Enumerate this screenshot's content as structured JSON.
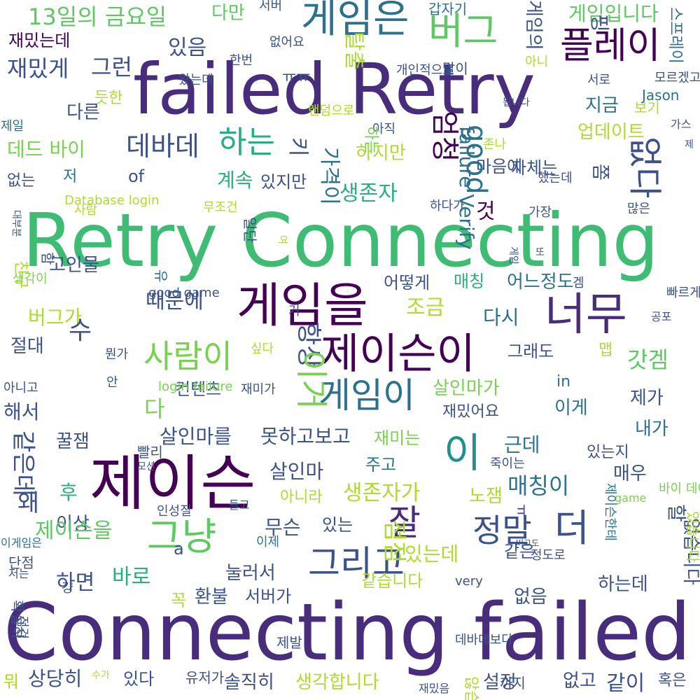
{
  "palette": {
    "dp": "#440154",
    "ip": "#472d7b",
    "bl": "#3b528b",
    "tb": "#2c728e",
    "te": "#21918c",
    "gt": "#28ae80",
    "gr": "#5ec962",
    "lg": "#addc30",
    "yl": "#fde725"
  },
  "words": [
    {
      "text": "Connecting failed",
      "color": "#472d7b"
    },
    {
      "text": "Retry Connecting",
      "color": "#3fbc73"
    },
    {
      "text": "failed Retry",
      "color": "#472d7b"
    },
    {
      "text": "제이슨",
      "color": "#440154"
    },
    {
      "text": "게임을",
      "color": "#440154"
    },
    {
      "text": "너무",
      "color": "#472d7b"
    },
    {
      "text": "제이슨이",
      "color": "#440154"
    },
    {
      "text": "게임은",
      "color": "#2c728e"
    },
    {
      "text": "플레이",
      "color": "#440154"
    },
    {
      "text": "버그",
      "color": "#5ec962"
    },
    {
      "text": "그냥",
      "color": "#5ec962"
    },
    {
      "text": "게임이",
      "color": "#2c728e"
    },
    {
      "text": "사람이",
      "color": "#7ad151"
    },
    {
      "text": "그리고",
      "color": "#3b528b"
    },
    {
      "text": "정말",
      "color": "#3b528b"
    },
    {
      "text": "잘",
      "color": "#472d7b"
    },
    {
      "text": "더",
      "color": "#3b528b"
    },
    {
      "text": "이",
      "color": "#21918c"
    },
    {
      "text": "13일의 금요일",
      "color": "#5ec962"
    },
    {
      "text": "하는",
      "color": "#28ae80"
    },
    {
      "text": "데바데",
      "color": "#3b528b"
    },
    {
      "text": "재밌게",
      "color": "#3b528b"
    },
    {
      "text": "그런",
      "color": "#3b528b"
    },
    {
      "text": "있음",
      "color": "#3b528b"
    },
    {
      "text": "다만",
      "color": "#5ec962"
    },
    {
      "text": "게임입니다",
      "color": "#5ec962"
    },
    {
      "text": "다른",
      "color": "#3b528b"
    },
    {
      "text": "데드 바이",
      "color": "#7ad151"
    },
    {
      "text": "지금",
      "color": "#2c728e"
    },
    {
      "text": "업데이트",
      "color": "#addc30"
    },
    {
      "text": "하지만",
      "color": "#addc30"
    },
    {
      "text": "마음에",
      "color": "#3b528b"
    },
    {
      "text": "계속",
      "color": "#28ae80"
    },
    {
      "text": "생존자",
      "color": "#28ae80"
    },
    {
      "text": "있지만",
      "color": "#3b528b"
    },
    {
      "text": "것",
      "color": "#440154"
    },
    {
      "text": "고인물",
      "color": "#3b528b"
    },
    {
      "text": "어떻게",
      "color": "#3b528b"
    },
    {
      "text": "매칭",
      "color": "#28ae80"
    },
    {
      "text": "어느정도",
      "color": "#2c728e"
    },
    {
      "text": "조금",
      "color": "#addc30"
    },
    {
      "text": "때문에",
      "color": "#3b528b"
    },
    {
      "text": "버그가",
      "color": "#addc30"
    },
    {
      "text": "다시",
      "color": "#2c728e"
    },
    {
      "text": "절대",
      "color": "#3b528b"
    },
    {
      "text": "수",
      "color": "#3b528b"
    },
    {
      "text": "갓겜",
      "color": "#5ec962"
    },
    {
      "text": "그래도",
      "color": "#3b528b"
    },
    {
      "text": "살인마가",
      "color": "#7ad151"
    },
    {
      "text": "재밌어요",
      "color": "#3b528b"
    },
    {
      "text": "이게",
      "color": "#2c728e"
    },
    {
      "text": "제가",
      "color": "#3b528b"
    },
    {
      "text": "내가",
      "color": "#2c728e"
    },
    {
      "text": "해서",
      "color": "#3b528b"
    },
    {
      "text": "다",
      "color": "#7ad151"
    },
    {
      "text": "컨텐츠",
      "color": "#3b528b"
    },
    {
      "text": "살인마를",
      "color": "#3b528b"
    },
    {
      "text": "못하고보고",
      "color": "#3b528b"
    },
    {
      "text": "재미는",
      "color": "#7ad151"
    },
    {
      "text": "근데",
      "color": "#2c728e"
    },
    {
      "text": "꿀잼",
      "color": "#3b528b"
    },
    {
      "text": "살인마",
      "color": "#3b528b"
    },
    {
      "text": "주고",
      "color": "#2c728e"
    },
    {
      "text": "생존자가",
      "color": "#addc30"
    },
    {
      "text": "노잼",
      "color": "#addc30"
    },
    {
      "text": "매칭이",
      "color": "#2c728e"
    },
    {
      "text": "매우",
      "color": "#3b528b"
    },
    {
      "text": "후",
      "color": "#28ae80"
    },
    {
      "text": "왜",
      "color": "#3b528b"
    },
    {
      "text": "이상",
      "color": "#3b528b"
    },
    {
      "text": "무슨",
      "color": "#3b528b"
    },
    {
      "text": "있는",
      "color": "#3b528b"
    },
    {
      "text": "제이슨을",
      "color": "#5ec962"
    },
    {
      "text": "하면",
      "color": "#3b528b"
    },
    {
      "text": "바로",
      "color": "#28ae80"
    },
    {
      "text": "눌러서",
      "color": "#3b528b"
    },
    {
      "text": "있는데",
      "color": "#addc30"
    },
    {
      "text": "같은",
      "color": "#3b528b"
    },
    {
      "text": "서버가",
      "color": "#3b528b"
    },
    {
      "text": "꼭",
      "color": "#addc30"
    },
    {
      "text": "환불",
      "color": "#3b528b"
    },
    {
      "text": "같습니다",
      "color": "#addc30"
    },
    {
      "text": "없음",
      "color": "#3b528b"
    },
    {
      "text": "하는데",
      "color": "#3b528b"
    },
    {
      "text": "상당히",
      "color": "#3b528b"
    },
    {
      "text": "있다",
      "color": "#3b528b"
    },
    {
      "text": "솔직히",
      "color": "#3b528b"
    },
    {
      "text": "생각합니다",
      "color": "#addc30"
    },
    {
      "text": "설정",
      "color": "#3b528b"
    },
    {
      "text": "없고",
      "color": "#3b528b"
    },
    {
      "text": "같이",
      "color": "#3b528b"
    },
    {
      "text": "혹은",
      "color": "#3b528b"
    },
    {
      "text": "뭐",
      "color": "#addc30"
    },
    {
      "text": "유저가",
      "color": "#3b528b"
    },
    {
      "text": "제발",
      "color": "#3b528b"
    },
    {
      "text": "Database login",
      "color": "#addc30"
    },
    {
      "text": "good game",
      "color": "#3b528b"
    },
    {
      "text": "login failure",
      "color": "#7ad151"
    },
    {
      "text": "very",
      "color": "#3b528b"
    },
    {
      "text": "of",
      "color": "#3b528b"
    },
    {
      "text": "a",
      "color": "#3b528b"
    },
    {
      "text": "in",
      "color": "#2c728e"
    },
    {
      "text": "Jason",
      "color": "#2c728e"
    },
    {
      "text": "game",
      "color": "#7ad151"
    },
    {
      "text": "재밌는데",
      "color": "#440154"
    },
    {
      "text": "듯한",
      "color": "#addc30"
    },
    {
      "text": "ㅠㅠ",
      "color": "#3b528b"
    },
    {
      "text": "한번",
      "color": "#3b528b"
    },
    {
      "text": "없어요",
      "color": "#3b528b"
    },
    {
      "text": "서버",
      "color": "#3b528b"
    },
    {
      "text": "갑자기",
      "color": "#2c728e"
    },
    {
      "text": "개인적으로",
      "color": "#3b528b"
    },
    {
      "text": "왔는데",
      "color": "#3b528b"
    },
    {
      "text": "말이",
      "color": "#3b528b"
    },
    {
      "text": "아니",
      "color": "#addc30"
    },
    {
      "text": "서로",
      "color": "#3b528b"
    },
    {
      "text": "모르겠고",
      "color": "#3b528b"
    },
    {
      "text": "보기",
      "color": "#addc30"
    },
    {
      "text": "제일",
      "color": "#2c728e"
    },
    {
      "text": "랜덤으로",
      "color": "#addc30"
    },
    {
      "text": "아직",
      "color": "#3b528b"
    },
    {
      "text": "가스",
      "color": "#3b528b"
    },
    {
      "text": "존나",
      "color": "#addc30"
    },
    {
      "text": "됩니다",
      "color": "#3b528b"
    },
    {
      "text": "제",
      "color": "#3b528b"
    },
    {
      "text": "저",
      "color": "#2c728e"
    },
    {
      "text": "없는",
      "color": "#3b528b"
    },
    {
      "text": "거",
      "color": "#3b528b"
    },
    {
      "text": "했는데",
      "color": "#3b528b"
    },
    {
      "text": "많은",
      "color": "#3b528b"
    },
    {
      "text": "하다가",
      "color": "#3b528b"
    },
    {
      "text": "가장",
      "color": "#3b528b"
    },
    {
      "text": "사람",
      "color": "#addc30"
    },
    {
      "text": "무조건",
      "color": "#addc30"
    },
    {
      "text": "자체는",
      "color": "#3b528b"
    },
    {
      "text": "또",
      "color": "#3b528b"
    },
    {
      "text": "겜",
      "color": "#3b528b"
    },
    {
      "text": "빠르게",
      "color": "#3b528b"
    },
    {
      "text": "공포",
      "color": "#3b528b"
    },
    {
      "text": "생각이",
      "color": "#7ad151"
    },
    {
      "text": "뭔가",
      "color": "#3b528b"
    },
    {
      "text": "싶다",
      "color": "#addc30"
    },
    {
      "text": "맵",
      "color": "#addc30"
    },
    {
      "text": "안",
      "color": "#3b528b"
    },
    {
      "text": "재미가",
      "color": "#3b528b"
    },
    {
      "text": "빨리",
      "color": "#3b528b"
    },
    {
      "text": "모션",
      "color": "#3b528b"
    },
    {
      "text": "있는지",
      "color": "#3b528b"
    },
    {
      "text": "죽이는",
      "color": "#3b528b"
    },
    {
      "text": "바이 데이라이트",
      "color": "#7ad151"
    },
    {
      "text": "들고",
      "color": "#3b528b"
    },
    {
      "text": "아니라",
      "color": "#addc30"
    },
    {
      "text": "인성질",
      "color": "#3b528b"
    },
    {
      "text": "아니고",
      "color": "#3b528b"
    },
    {
      "text": "이게임은",
      "color": "#2c728e"
    },
    {
      "text": "이제",
      "color": "#2c728e"
    },
    {
      "text": "단점",
      "color": "#3b528b"
    },
    {
      "text": "저는",
      "color": "#3b528b"
    },
    {
      "text": "정도로",
      "color": "#3b528b"
    },
    {
      "text": "버그도",
      "color": "#3b528b"
    },
    {
      "text": "걍",
      "color": "#3b528b"
    },
    {
      "text": "데바데보다",
      "color": "#3b528b"
    },
    {
      "text": "수가",
      "color": "#addc30"
    },
    {
      "text": "까지",
      "color": "#3b528b"
    },
    {
      "text": "재밌음",
      "color": "#3b528b"
    },
    {
      "text": "같은데",
      "color": "#3b528b"
    },
    {
      "text": "일단",
      "color": "#3b528b"
    },
    {
      "text": "게임의",
      "color": "#3b528b"
    },
    {
      "text": "탈출",
      "color": "#addc30"
    },
    {
      "text": "가격이",
      "color": "#2c728e"
    },
    {
      "text": "키",
      "color": "#3b528b"
    },
    {
      "text": "쫌",
      "color": "#3b528b"
    },
    {
      "text": "핑",
      "color": "#3b528b"
    },
    {
      "text": "확실히",
      "color": "#3b528b"
    },
    {
      "text": "점점",
      "color": "#addc30"
    },
    {
      "text": "없습니다",
      "color": "#3b528b"
    },
    {
      "text": "있습니다",
      "color": "#addc30"
    },
    {
      "text": "스프레이",
      "color": "#2c728e"
    },
    {
      "text": "제이슨한테",
      "color": "#2c728e"
    },
    {
      "text": "failure Verify",
      "color": "#2c728e"
    },
    {
      "text": "항상",
      "color": "#3b528b"
    },
    {
      "text": "이거",
      "color": "#7ad151"
    },
    {
      "text": "good",
      "color": "#2c728e"
    },
    {
      "text": "엄청",
      "color": "#440154"
    },
    {
      "text": "없다",
      "color": "#3b528b"
    },
    {
      "text": "하는",
      "color": "#7ad151"
    },
    {
      "text": "친구",
      "color": "#addc30"
    },
    {
      "text": "대부분",
      "color": "#3b528b"
    },
    {
      "text": "않습니다",
      "color": "#addc30"
    },
    {
      "text": "유",
      "color": "#2c728e"
    },
    {
      "text": "함",
      "color": "#3b528b"
    },
    {
      "text": "게임",
      "color": "#3b528b"
    },
    {
      "text": "점검",
      "color": "#3b528b"
    },
    {
      "text": "할",
      "color": "#3b528b"
    },
    {
      "text": "여",
      "color": "#addc30"
    },
    {
      "text": "ㅠ",
      "color": "#3b528b"
    }
  ]
}
